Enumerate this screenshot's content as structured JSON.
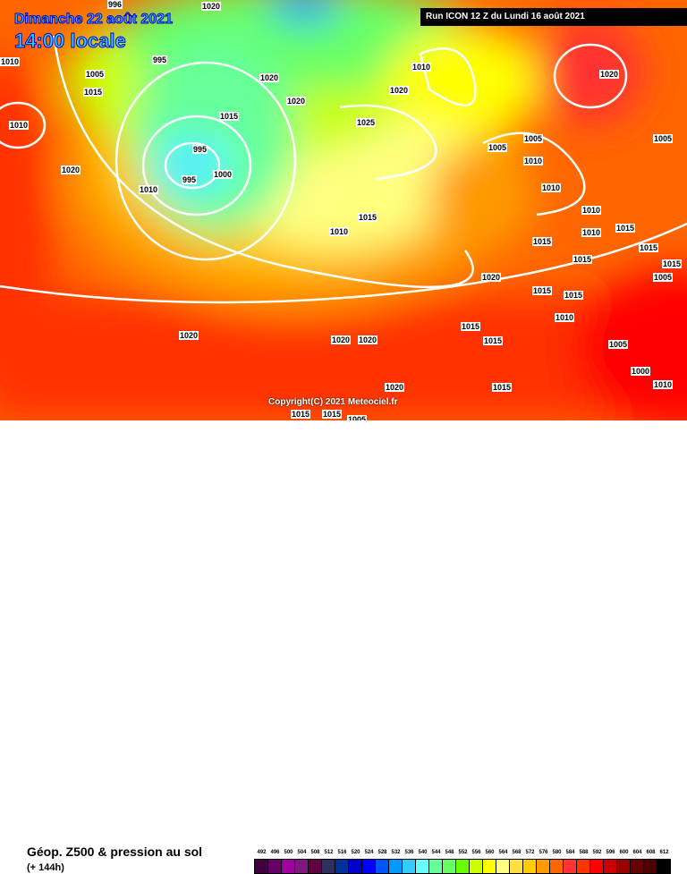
{
  "header": {
    "date": "Dimanche 22 août 2021",
    "time": "14:00 locale",
    "run": "Run ICON 12 Z du Lundi 16 août 2021"
  },
  "copyright": "Copyright(C) 2021 Meteociel.fr",
  "footer": {
    "product": "Géop. Z500 & pression au sol",
    "lead": "(+ 144h)"
  },
  "legend": {
    "levels": [
      "492",
      "496",
      "500",
      "504",
      "508",
      "512",
      "516",
      "520",
      "524",
      "528",
      "532",
      "536",
      "540",
      "544",
      "548",
      "552",
      "556",
      "560",
      "564",
      "568",
      "572",
      "576",
      "580",
      "584",
      "588",
      "592",
      "596",
      "600",
      "604",
      "608",
      "612"
    ],
    "colors": [
      "#400040",
      "#660066",
      "#a000a0",
      "#801880",
      "#600040",
      "#303060",
      "#003399",
      "#0000cc",
      "#0000ff",
      "#0055ff",
      "#0099ff",
      "#33ccff",
      "#66ffff",
      "#66ff99",
      "#66ff66",
      "#66ff00",
      "#ccff00",
      "#ffff00",
      "#ffff80",
      "#ffe040",
      "#ffcc00",
      "#ff9900",
      "#ff6600",
      "#ff3333",
      "#ff3300",
      "#ff0000",
      "#cc0000",
      "#990000",
      "#660000",
      "#4d0000",
      "#000000"
    ]
  },
  "isobars": [
    "1020",
    "996",
    "995",
    "1010",
    "1005",
    "1015",
    "1010",
    "1020",
    "1020",
    "1020",
    "1010",
    "1020",
    "1020",
    "1015",
    "995",
    "1000",
    "995",
    "1010",
    "1005",
    "1025",
    "1005",
    "1010",
    "1010",
    "1010",
    "1005",
    "1010",
    "1015",
    "1015",
    "1010",
    "1015",
    "1020",
    "1015",
    "1015",
    "1010",
    "1005",
    "1020",
    "1020",
    "1020",
    "1015",
    "1015",
    "1020",
    "1015",
    "1015",
    "1015",
    "1005",
    "1005",
    "1000",
    "1010",
    "1015",
    "1015",
    "1015"
  ]
}
